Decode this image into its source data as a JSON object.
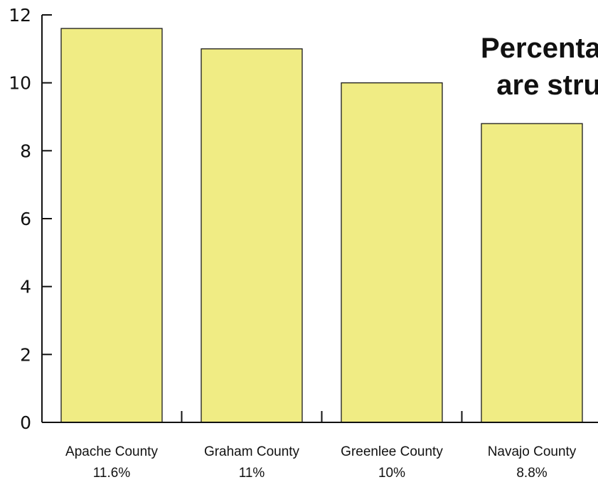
{
  "chart_data": {
    "type": "bar",
    "title_lines": [
      "Percenta",
      "are stru"
    ],
    "categories": [
      "Apache County",
      "Graham County",
      "Greenlee County",
      "Navajo County"
    ],
    "value_labels": [
      "11.6%",
      "11%",
      "10%",
      "8.8%"
    ],
    "values": [
      11.6,
      11,
      10,
      8.8
    ],
    "ylim": [
      0,
      12
    ],
    "yticks": [
      0,
      2,
      4,
      6,
      8,
      10,
      12
    ],
    "xlabel": "",
    "ylabel": "",
    "grid": false,
    "legend": "none",
    "bar_color": "#f0ec84",
    "axis_color": "#111111"
  }
}
